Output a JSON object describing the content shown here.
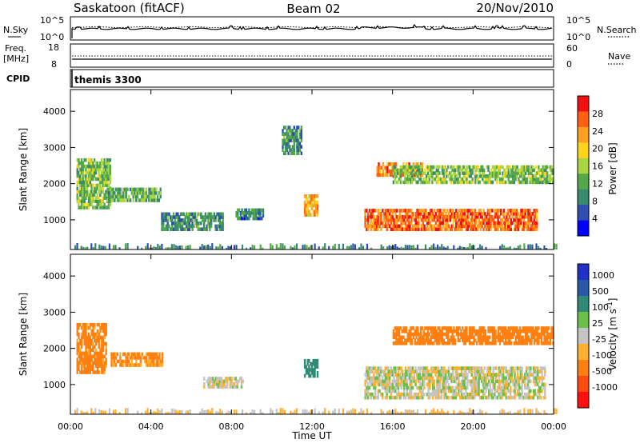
{
  "header": {
    "station": "Saskatoon (fitACF)",
    "beam": "Beam 02",
    "date": "20/Nov/2010"
  },
  "nsky_panel": {
    "left_label": "N.Sky",
    "left_ticks": [
      "10^5",
      "10^0"
    ],
    "right_label": "N.Search",
    "right_ticks": [
      "10^5",
      "10^0"
    ]
  },
  "freq_panel": {
    "left_label_1": "Freq.",
    "left_label_2": "[MHz]",
    "left_ticks": [
      "18",
      "8"
    ],
    "right_label": "Nave",
    "right_ticks": [
      "60",
      "0"
    ]
  },
  "cpid_panel": {
    "label": "CPID",
    "program": "themis 3300"
  },
  "colors": {
    "power_scale": [
      "#0000ff",
      "#2e4fb0",
      "#3a8a6e",
      "#55a84a",
      "#a8d640",
      "#ffd21e",
      "#ffa020",
      "#ff6010",
      "#f01010"
    ],
    "velocity_scale": [
      "#2030c8",
      "#2858a8",
      "#308a78",
      "#6ac048",
      "#c4c4c4",
      "#ffb030",
      "#ff8010",
      "#ff4a10",
      "#ff1010"
    ]
  },
  "chart_data": [
    {
      "type": "heatmap",
      "panel": "power",
      "xlabel": "",
      "ylabel": "Slant Range [km]",
      "x_ticks": [
        "00:00",
        "04:00",
        "08:00",
        "12:00",
        "16:00",
        "20:00",
        "00:00"
      ],
      "y_ticks": [
        "1000",
        "2000",
        "3000",
        "4000"
      ],
      "ylim": [
        180,
        4600
      ],
      "xlim_hours": [
        0,
        24
      ],
      "colorbar_label": "Power [dB]",
      "colorbar_ticks": [
        "28",
        "24",
        "20",
        "16",
        "12",
        "8",
        "4"
      ],
      "colorbar_range": [
        0,
        32
      ],
      "regions": [
        {
          "t0": 0.3,
          "t1": 2.0,
          "r0": 1300,
          "r1": 2700,
          "level": 14
        },
        {
          "t0": 1.8,
          "t1": 4.5,
          "r0": 1500,
          "r1": 1900,
          "level": 12
        },
        {
          "t0": 4.5,
          "t1": 7.6,
          "r0": 700,
          "r1": 1200,
          "level": 10
        },
        {
          "t0": 8.2,
          "t1": 9.6,
          "r0": 1000,
          "r1": 1300,
          "level": 8
        },
        {
          "t0": 10.5,
          "t1": 11.5,
          "r0": 2800,
          "r1": 3600,
          "level": 10
        },
        {
          "t0": 11.6,
          "t1": 12.3,
          "r0": 1100,
          "r1": 1700,
          "level": 22
        },
        {
          "t0": 14.6,
          "t1": 23.2,
          "r0": 700,
          "r1": 1300,
          "level": 26
        },
        {
          "t0": 15.2,
          "t1": 17.5,
          "r0": 2200,
          "r1": 2600,
          "level": 24
        },
        {
          "t0": 16.0,
          "t1": 24.0,
          "r0": 2000,
          "r1": 2500,
          "level": 14
        }
      ]
    },
    {
      "type": "heatmap",
      "panel": "velocity",
      "xlabel": "Time UT",
      "ylabel": "Slant Range [km]",
      "x_ticks": [
        "00:00",
        "04:00",
        "08:00",
        "12:00",
        "16:00",
        "20:00",
        "00:00"
      ],
      "y_ticks": [
        "1000",
        "2000",
        "3000",
        "4000"
      ],
      "ylim": [
        180,
        4600
      ],
      "xlim_hours": [
        0,
        24
      ],
      "colorbar_label": "Velocity [m s^-1]",
      "colorbar_ticks": [
        "1000",
        "500",
        "100",
        "25",
        "-25",
        "-100",
        "-500",
        "-1000"
      ],
      "regions": [
        {
          "t0": 0.3,
          "t1": 1.8,
          "r0": 1300,
          "r1": 2700,
          "velocity": -150
        },
        {
          "t0": 2.0,
          "t1": 4.6,
          "r0": 1500,
          "r1": 1900,
          "velocity": -120
        },
        {
          "t0": 6.6,
          "t1": 8.6,
          "r0": 900,
          "r1": 1200,
          "velocity": 0
        },
        {
          "t0": 11.6,
          "t1": 12.3,
          "r0": 1200,
          "r1": 1700,
          "velocity": 200
        },
        {
          "t0": 14.6,
          "t1": 23.6,
          "r0": 600,
          "r1": 1500,
          "velocity": 0
        },
        {
          "t0": 16.0,
          "t1": 24.0,
          "r0": 2100,
          "r1": 2600,
          "velocity": -200
        }
      ]
    }
  ]
}
